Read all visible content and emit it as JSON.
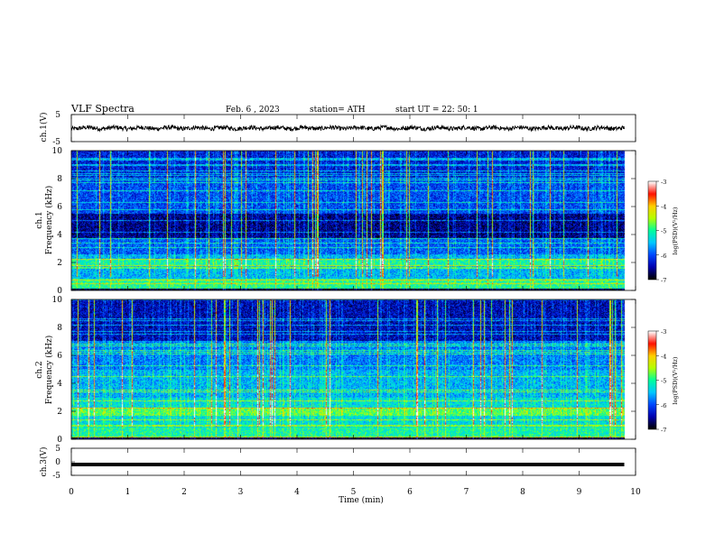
{
  "header": {
    "title": "VLF  Spectra",
    "date": "Feb. 6  , 2023",
    "station": "station= ATH",
    "start": "start  UT  =   22: 50: 1"
  },
  "panels": {
    "ch1_wave_label": "ch.1(V)",
    "ch1_spec_label": "ch.1",
    "ch2_spec_label": "ch.2",
    "ch3_wave_label": "ch.3(V)",
    "freq_label": "Frequency  (kHz)",
    "xlabel": "Time  (min)",
    "colorbar_label": "log(PSD)(V²/Hz)"
  },
  "colors": {
    "colormap": [
      "#000000",
      "#0000b0",
      "#0048ff",
      "#00c8ff",
      "#00ff9c",
      "#b4ff00",
      "#ffd000",
      "#ff1000",
      "#ffffff"
    ]
  },
  "chart_data": [
    {
      "type": "line",
      "name": "ch.1(V)",
      "ylim": [
        -5,
        5
      ],
      "yticks": [
        "5",
        "-5"
      ],
      "xlim": [
        0,
        10
      ],
      "x_end": 9.8,
      "baseline": 0
    },
    {
      "type": "heatmap",
      "name": "ch.1",
      "xlim": [
        0,
        10
      ],
      "ylim": [
        0,
        10
      ],
      "yticks": [
        "0",
        "2",
        "4",
        "6",
        "8",
        "10"
      ],
      "zlim": [
        -7,
        -3
      ],
      "colorbar_ticks": [
        "-3",
        "-4",
        "-5",
        "-6",
        "-7"
      ]
    },
    {
      "type": "heatmap",
      "name": "ch.2",
      "xlim": [
        0,
        10
      ],
      "ylim": [
        0,
        10
      ],
      "yticks": [
        "0",
        "2",
        "4",
        "6",
        "8",
        "10"
      ],
      "zlim": [
        -7,
        -3
      ],
      "colorbar_ticks": [
        "-3",
        "-4",
        "-5",
        "-6",
        "-7"
      ]
    },
    {
      "type": "line",
      "name": "ch.3(V)",
      "ylim": [
        -5,
        5
      ],
      "yticks": [
        "5",
        "0",
        "-5"
      ],
      "xlim": [
        0,
        10
      ],
      "x_end": 9.8,
      "baseline": -1
    }
  ],
  "xticks": [
    "0",
    "1",
    "2",
    "3",
    "4",
    "5",
    "6",
    "7",
    "8",
    "9",
    "10"
  ]
}
